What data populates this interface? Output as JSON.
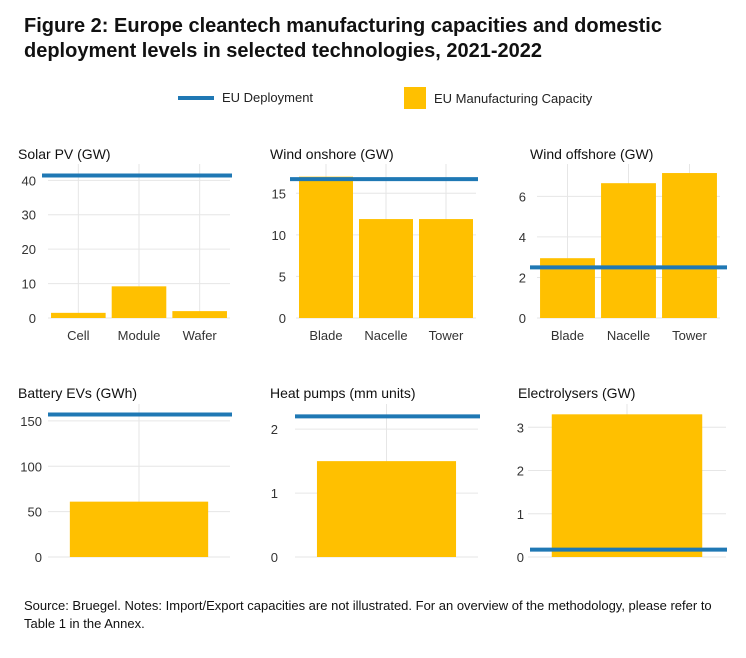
{
  "title": "Figure 2: Europe cleantech manufacturing capacities and domestic deployment levels in selected technologies, 2021-2022",
  "legend": {
    "deployment_label": "EU Deployment",
    "manufacturing_label": "EU Manufacturing Capacity"
  },
  "colors": {
    "deployment": "#1f78b4",
    "manufacturing": "#ffc000",
    "grid": "#e6e6e6"
  },
  "chart_data": [
    {
      "type": "bar",
      "title": "Solar PV (GW)",
      "categories": [
        "Cell",
        "Module",
        "Wafer"
      ],
      "values": [
        1.5,
        9.2,
        2.0
      ],
      "deployment": 41.4,
      "yticks": [
        0,
        10,
        20,
        30,
        40
      ],
      "ylim": [
        0,
        43
      ]
    },
    {
      "type": "bar",
      "title": "Wind onshore (GW)",
      "categories": [
        "Blade",
        "Nacelle",
        "Tower"
      ],
      "values": [
        17.0,
        11.9,
        11.9
      ],
      "deployment": 16.7,
      "yticks": [
        0,
        5,
        10,
        15
      ],
      "ylim": [
        0,
        17.8
      ]
    },
    {
      "type": "bar",
      "title": "Wind offshore (GW)",
      "categories": [
        "Blade",
        "Nacelle",
        "Tower"
      ],
      "values": [
        2.95,
        6.65,
        7.15
      ],
      "deployment": 2.5,
      "yticks": [
        0,
        2,
        4,
        6
      ],
      "ylim": [
        0,
        7.3
      ]
    },
    {
      "type": "bar",
      "title": "Battery EVs (GWh)",
      "categories": [
        ""
      ],
      "values": [
        61
      ],
      "deployment": 157,
      "yticks": [
        0,
        50,
        100,
        150
      ],
      "ylim": [
        0,
        162
      ]
    },
    {
      "type": "bar",
      "title": "Heat pumps (mm units)",
      "categories": [
        ""
      ],
      "values": [
        1.5
      ],
      "deployment": 2.2,
      "yticks": [
        0,
        1,
        2
      ],
      "ylim": [
        0,
        2.3
      ]
    },
    {
      "type": "bar",
      "title": "Electrolysers (GW)",
      "categories": [
        ""
      ],
      "values": [
        3.3
      ],
      "deployment": 0.17,
      "yticks": [
        0,
        1,
        2,
        3
      ],
      "ylim": [
        0,
        3.4
      ]
    }
  ],
  "source": "Source: Bruegel. Notes: Import/Export capacities are not illustrated. For an overview of the methodology, please refer to Table 1 in the Annex."
}
